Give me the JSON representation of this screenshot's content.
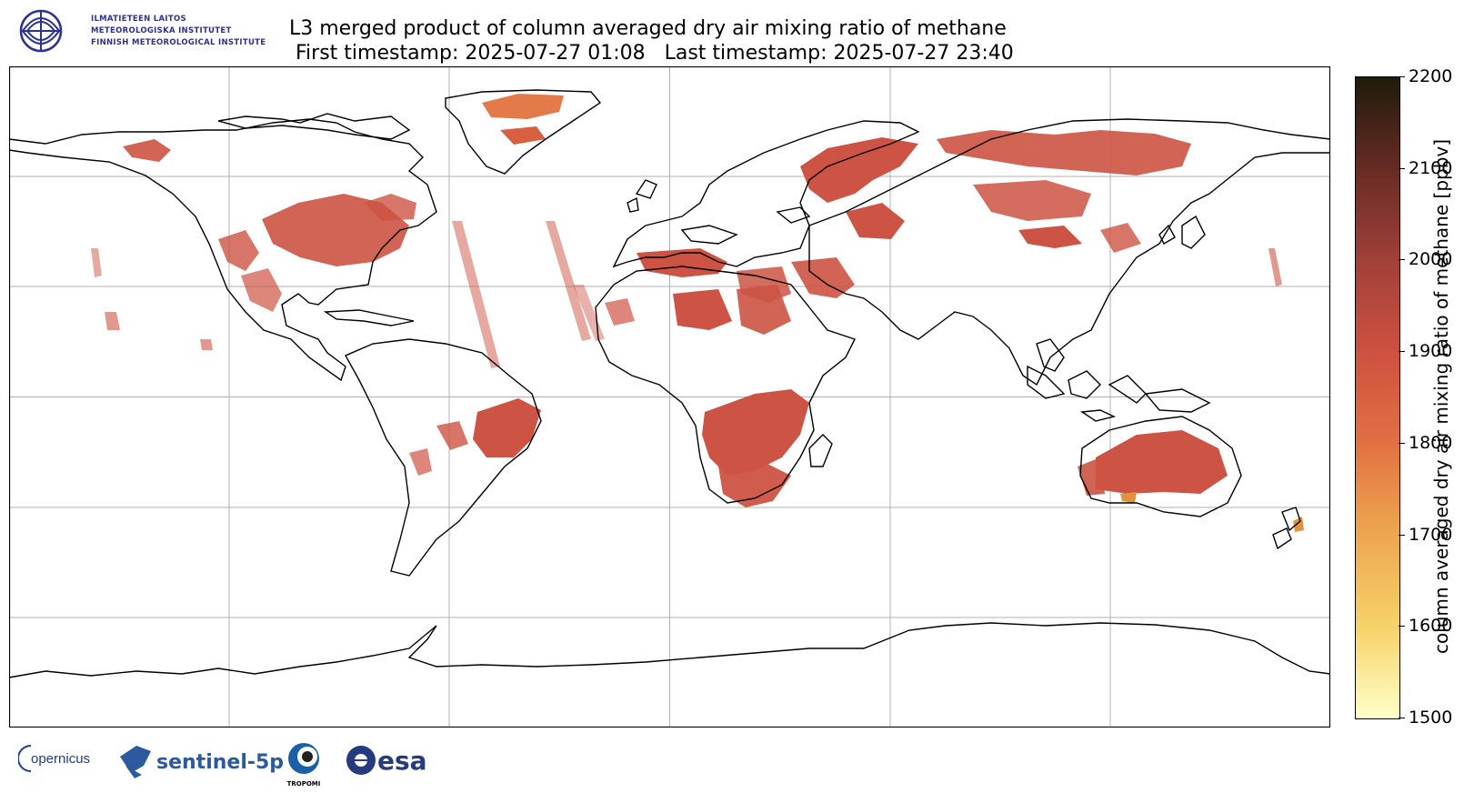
{
  "logos": {
    "fmi": {
      "lines": [
        "ILMATIETEEN LAITOS",
        "METEOROLOGISKA INSTITUTET",
        "FINNISH METEOROLOGICAL INSTITUTE"
      ],
      "color": "#2e3192"
    },
    "copernicus": "opernicus",
    "sentinel": "sentinel-5p",
    "tropomi": "TROPOMI",
    "esa": "esa"
  },
  "title": {
    "line1": "L3 merged product of column averaged dry air mixing ratio of methane",
    "line2": " First timestamp: 2025-07-27 01:08   Last timestamp: 2025-07-27 23:40"
  },
  "colorbar": {
    "label": "column averaged dry air mixing ratio of methane [ppbv]",
    "min": 1500,
    "max": 2200,
    "ticks": [
      "2200",
      "2100",
      "2000",
      "1900",
      "1800",
      "1700",
      "1600",
      "1500"
    ],
    "colormap": [
      "#ffffc8",
      "#f6d36a",
      "#eda24e",
      "#e27042",
      "#cf5140",
      "#a2413a",
      "#6b2c24",
      "#1f1b0a"
    ]
  },
  "map": {
    "projection": "plate carree",
    "gridlines": true,
    "coastlines": true,
    "data_color": "#cd5344"
  }
}
